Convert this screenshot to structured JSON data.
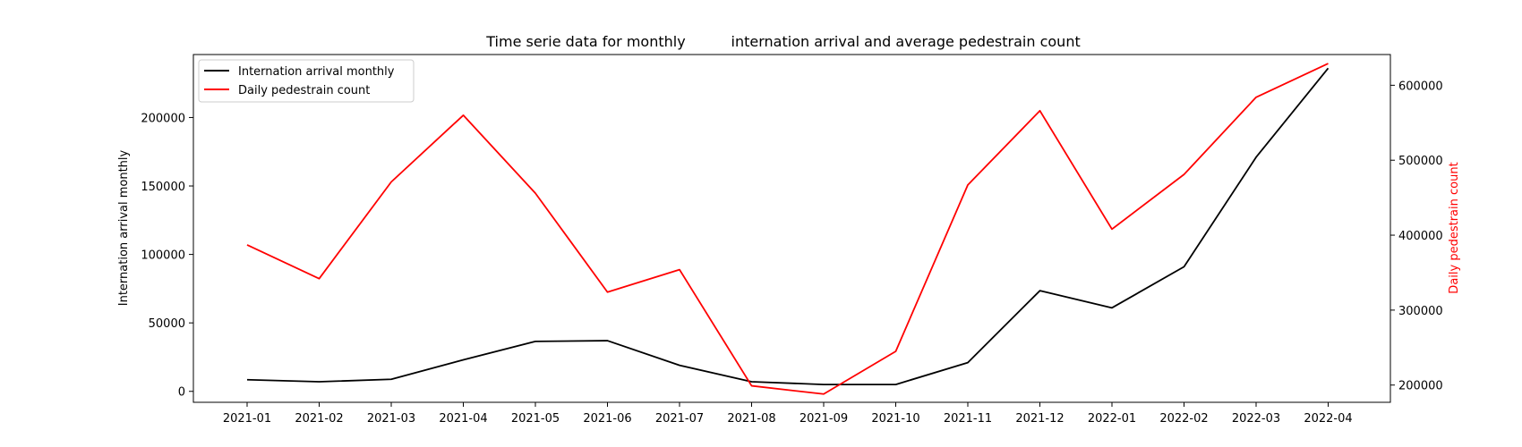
{
  "chart_data": {
    "type": "line",
    "title": "Time serie data for monthly          internation arrival and average pedestrain count",
    "categories": [
      "2021-01",
      "2021-02",
      "2021-03",
      "2021-04",
      "2021-05",
      "2021-06",
      "2021-07",
      "2021-08",
      "2021-09",
      "2021-10",
      "2021-11",
      "2021-12",
      "2022-01",
      "2022-02",
      "2022-03",
      "2022-04"
    ],
    "xlabel": "",
    "grid": false,
    "legend_position": "top-left",
    "series": [
      {
        "name": "Internation arrival monthly",
        "axis": "left",
        "color": "#000000",
        "values": [
          8500,
          7000,
          8800,
          23000,
          36500,
          37000,
          19000,
          7000,
          5000,
          5000,
          21000,
          73500,
          61000,
          91000,
          171000,
          236000
        ]
      },
      {
        "name": "Daily pedestrain count",
        "axis": "right",
        "color": "#ff0000",
        "values": [
          387000,
          342000,
          471000,
          560000,
          456000,
          324000,
          354000,
          199000,
          188000,
          245000,
          467000,
          566000,
          408000,
          481000,
          584000,
          629000
        ]
      }
    ],
    "y_left": {
      "label": "Internation arrival monthly",
      "color": "#000000",
      "ticks": [
        0,
        50000,
        100000,
        150000,
        200000
      ],
      "ylim": [
        -8000,
        246000
      ]
    },
    "y_right": {
      "label": "Daily pedestrain count",
      "color": "#ff0000",
      "ticks": [
        200000,
        300000,
        400000,
        500000,
        600000
      ],
      "ylim": [
        177000,
        641000
      ]
    }
  }
}
